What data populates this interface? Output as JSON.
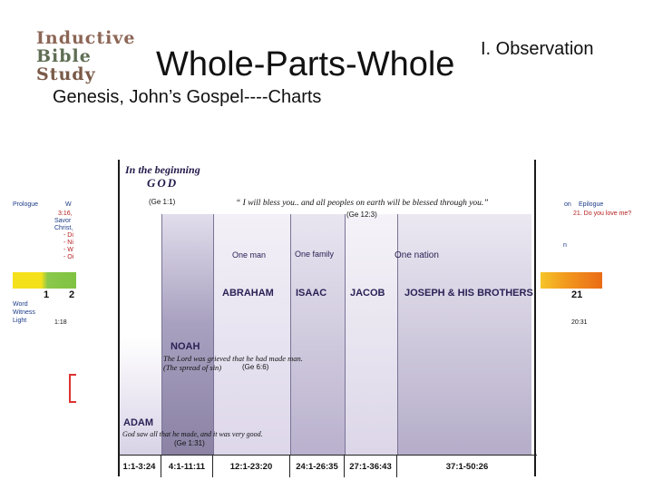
{
  "logo": {
    "line1": "Inductive",
    "line2": "Bible",
    "line3": "Study"
  },
  "section_label": "I. Observation",
  "title": "Whole-Parts-Whole",
  "subtitle": "Genesis, John’s Gospel----Charts",
  "chart": {
    "header_top": "In the beginning",
    "header_god": "GOD",
    "header_ref": "(Ge 1:1)",
    "quote": "“ I will bless you.. and all peoples on earth will be blessed through you.”",
    "quote_ref": "(Ge 12:3)",
    "one_man": "One man",
    "one_family": "One family",
    "one_nation": "One nation",
    "names": [
      "ABRAHAM",
      "ISAAC",
      "JACOB",
      "JOSEPH & HIS BROTHERS"
    ],
    "noah": "NOAH",
    "noah_quote": "The Lord was grieved that he had made man.",
    "noah_note": "(The spread of sin)",
    "noah_ref": "(Ge 6:6)",
    "adam": "ADAM",
    "adam_quote": "God saw all that he made, and it was very good.",
    "adam_ref": "(Ge 1:31)",
    "refs": [
      "1:1-3:24",
      "4:1-11:11",
      "12:1-23:20",
      "24:1-26:35",
      "27:1-36:43",
      "37:1-50:26"
    ]
  },
  "left_side": {
    "prologue": "Prologue",
    "w": "W",
    "ref_118": "3:16,",
    "savor": "Savor",
    "christ": "Christ,",
    "items": [
      "- Di",
      "- Ni",
      "- W",
      "- Oi"
    ],
    "num1": "1",
    "num2": "2",
    "word": "Word",
    "witness": "Witness",
    "light": "Light",
    "v118": "1:18"
  },
  "right_side": {
    "on": "on",
    "epilogue": "Epilogue",
    "love": "21. Do you love me?",
    "n": "n",
    "num21": "21",
    "v2031": "20:31"
  },
  "colors": {
    "purple_dark": "#8f86a8",
    "purple_light": "#ddd7ea",
    "navy": "#241a4a",
    "orange": "#f29a1e",
    "yellow": "#f4e11c",
    "green": "#7fc241"
  }
}
